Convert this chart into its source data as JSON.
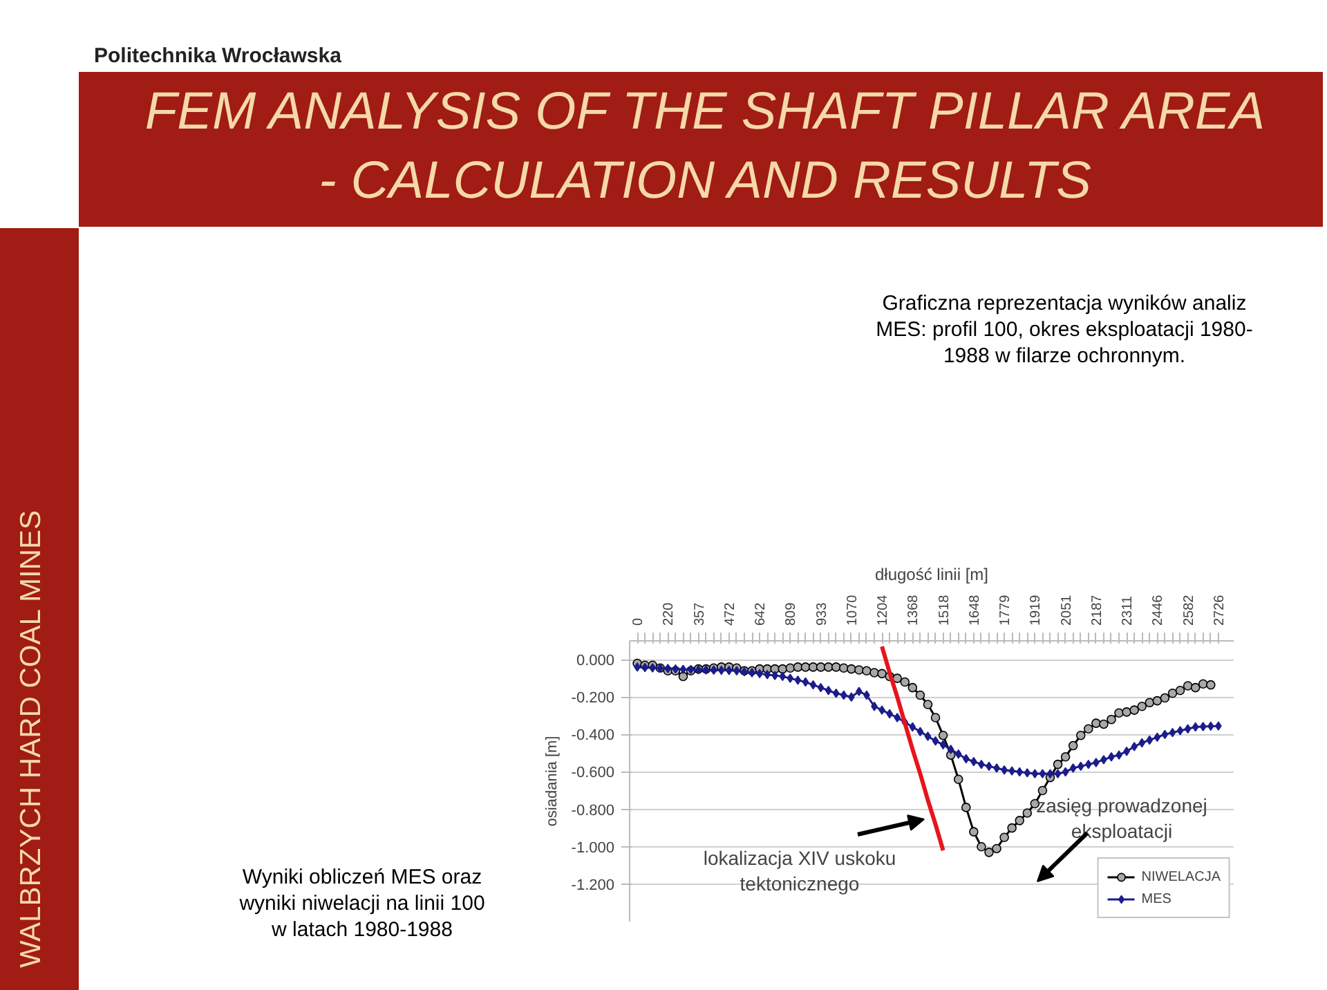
{
  "chart_data": {
    "type": "line",
    "title": "FEM ANALYSIS OF THE SHAFT PILLAR AREA - CALCULATION AND RESULTS",
    "subtitle": "Graficzna reprezentacja wyników analiz MES: profil 100, okres eksploatacji 1980-1988 w filarze ochronnym.",
    "xlabel": "długość linii [m]",
    "ylabel": "osiadania [m]",
    "categories": [
      "0",
      null,
      null,
      null,
      "220",
      null,
      null,
      null,
      "357",
      null,
      null,
      null,
      "472",
      null,
      null,
      null,
      "642",
      null,
      null,
      null,
      "809",
      null,
      null,
      null,
      "933",
      null,
      null,
      null,
      "1070",
      null,
      null,
      null,
      "1204",
      null,
      null,
      null,
      "1368",
      null,
      null,
      null,
      "1518",
      null,
      null,
      null,
      "1648",
      null,
      null,
      null,
      "1779",
      null,
      null,
      null,
      "1919",
      null,
      null,
      null,
      "2051",
      null,
      null,
      null,
      "2187",
      null,
      null,
      null,
      "2311",
      null,
      null,
      null,
      "2446",
      null,
      null,
      null,
      "2582",
      null,
      null,
      null,
      "2726"
    ],
    "series": [
      {
        "name": "NIWELACJA",
        "color": "#000000",
        "marker": "circle",
        "values": [
          -0.02,
          -0.03,
          -0.03,
          -0.045,
          -0.06,
          -0.06,
          -0.09,
          -0.06,
          -0.05,
          -0.05,
          -0.045,
          -0.04,
          -0.04,
          -0.045,
          -0.06,
          -0.06,
          -0.05,
          -0.05,
          -0.05,
          -0.05,
          -0.045,
          -0.04,
          -0.04,
          -0.04,
          -0.04,
          -0.04,
          -0.04,
          -0.045,
          -0.05,
          -0.055,
          -0.06,
          -0.07,
          -0.075,
          -0.09,
          -0.1,
          -0.12,
          -0.15,
          -0.19,
          -0.24,
          -0.31,
          -0.405,
          -0.51,
          -0.64,
          -0.79,
          -0.92,
          -1.0,
          -1.03,
          -1.01,
          -0.95,
          -0.9,
          -0.86,
          -0.82,
          -0.77,
          -0.7,
          -0.63,
          -0.56,
          -0.52,
          -0.46,
          -0.405,
          -0.37,
          -0.34,
          -0.345,
          -0.32,
          -0.285,
          -0.28,
          -0.27,
          -0.25,
          -0.23,
          -0.22,
          -0.205,
          -0.18,
          -0.165,
          -0.14,
          -0.15,
          -0.13,
          -0.135,
          null
        ]
      },
      {
        "name": "MES",
        "color": "#1c1c8c",
        "marker": "diamond",
        "values": [
          -0.04,
          -0.042,
          -0.044,
          -0.046,
          -0.048,
          -0.05,
          -0.052,
          -0.053,
          -0.054,
          -0.055,
          -0.056,
          -0.057,
          -0.058,
          -0.06,
          -0.065,
          -0.07,
          -0.075,
          -0.08,
          -0.085,
          -0.09,
          -0.1,
          -0.11,
          -0.12,
          -0.135,
          -0.15,
          -0.165,
          -0.18,
          -0.19,
          -0.2,
          -0.17,
          -0.19,
          -0.25,
          -0.27,
          -0.29,
          -0.31,
          -0.335,
          -0.36,
          -0.385,
          -0.41,
          -0.435,
          -0.455,
          -0.48,
          -0.505,
          -0.53,
          -0.545,
          -0.56,
          -0.57,
          -0.58,
          -0.59,
          -0.595,
          -0.6,
          -0.605,
          -0.61,
          -0.61,
          -0.61,
          -0.61,
          -0.6,
          -0.58,
          -0.57,
          -0.56,
          -0.55,
          -0.535,
          -0.52,
          -0.51,
          -0.49,
          -0.465,
          -0.445,
          -0.43,
          -0.415,
          -0.4,
          -0.39,
          -0.38,
          -0.37,
          -0.36,
          -0.358,
          -0.356,
          -0.355
        ]
      },
      {
        "type": "line",
        "color": "#e8141c",
        "marker": "none",
        "values": [
          null,
          null,
          null,
          null,
          null,
          null,
          null,
          null,
          null,
          null,
          null,
          null,
          null,
          null,
          null,
          null,
          null,
          null,
          null,
          null,
          null,
          null,
          null,
          null,
          null,
          null,
          null,
          null,
          null,
          null,
          null,
          null,
          0.07,
          -0.07,
          -0.2,
          -0.34,
          -0.48,
          -0.61,
          -0.75,
          -0.88,
          -1.02,
          null,
          null,
          null,
          null,
          null,
          null,
          null,
          null,
          null,
          null,
          null,
          null,
          null,
          null,
          null,
          null,
          null,
          null,
          null,
          null,
          null,
          null,
          null,
          null,
          null,
          null,
          null,
          null,
          null,
          null,
          null,
          null,
          null,
          null,
          null,
          null
        ]
      }
    ],
    "ylim": [
      -1.4,
      0.1
    ],
    "yticks": [
      {
        "value": 0,
        "label": "0.000"
      },
      {
        "value": -0.2,
        "label": "-0.200"
      },
      {
        "value": -0.4,
        "label": "-0.400"
      },
      {
        "value": -0.6,
        "label": "-0.600"
      },
      {
        "value": -0.8,
        "label": "-0.800"
      },
      {
        "value": -1.0,
        "label": "-1.000"
      },
      {
        "value": -1.2,
        "label": "-1.200"
      }
    ],
    "grid": "y",
    "legend": "bottom right",
    "line_style": "solid",
    "annotations": [
      "lokalizacja XIV uskoku tektonicznego",
      "zasięg prowadzonej eksploatacji",
      "Wyniki obliczeń MES oraz wyniki niwelacji na linii 100 w latach 1980-1988",
      "Politechnika Wrocławska",
      "WALBRZYCH HARD COAL MINES"
    ]
  }
}
